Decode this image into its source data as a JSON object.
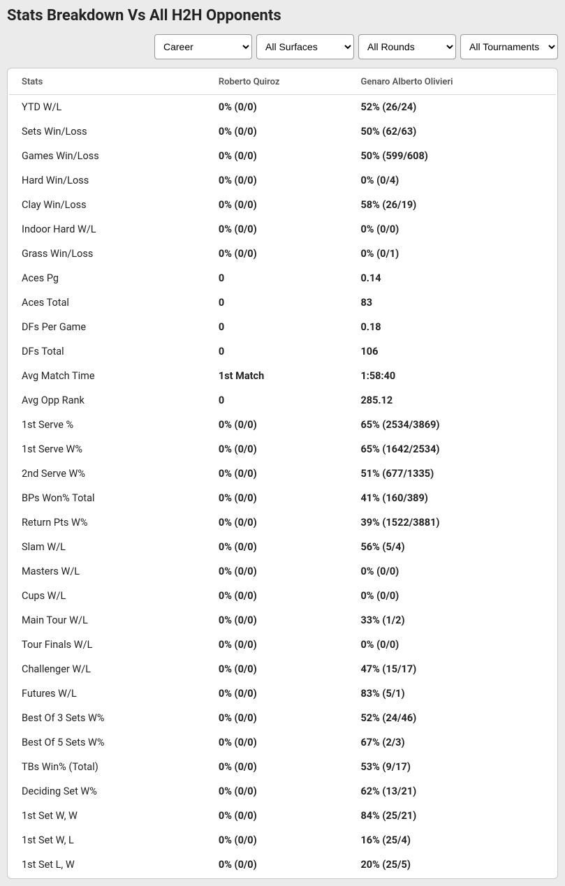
{
  "title": "Stats Breakdown Vs All H2H Opponents",
  "filters": {
    "timeframe": {
      "selected": "Career",
      "options": [
        "Career"
      ]
    },
    "surfaces": {
      "selected": "All Surfaces",
      "options": [
        "All Surfaces"
      ]
    },
    "rounds": {
      "selected": "All Rounds",
      "options": [
        "All Rounds"
      ]
    },
    "tournaments": {
      "selected": "All Tournaments",
      "options": [
        "All Tournaments"
      ]
    }
  },
  "columns": {
    "stats": "Stats",
    "p1": "Roberto Quiroz",
    "p2": "Genaro Alberto Olivieri"
  },
  "rows": [
    {
      "label": "YTD W/L",
      "p1": "0% (0/0)",
      "p2": "52% (26/24)"
    },
    {
      "label": "Sets Win/Loss",
      "p1": "0% (0/0)",
      "p2": "50% (62/63)"
    },
    {
      "label": "Games Win/Loss",
      "p1": "0% (0/0)",
      "p2": "50% (599/608)"
    },
    {
      "label": "Hard Win/Loss",
      "p1": "0% (0/0)",
      "p2": "0% (0/4)"
    },
    {
      "label": "Clay Win/Loss",
      "p1": "0% (0/0)",
      "p2": "58% (26/19)"
    },
    {
      "label": "Indoor Hard W/L",
      "p1": "0% (0/0)",
      "p2": "0% (0/0)"
    },
    {
      "label": "Grass Win/Loss",
      "p1": "0% (0/0)",
      "p2": "0% (0/1)"
    },
    {
      "label": "Aces Pg",
      "p1": "0",
      "p2": "0.14"
    },
    {
      "label": "Aces Total",
      "p1": "0",
      "p2": "83"
    },
    {
      "label": "DFs Per Game",
      "p1": "0",
      "p2": "0.18"
    },
    {
      "label": "DFs Total",
      "p1": "0",
      "p2": "106"
    },
    {
      "label": "Avg Match Time",
      "p1": "1st Match",
      "p2": "1:58:40"
    },
    {
      "label": "Avg Opp Rank",
      "p1": "0",
      "p2": "285.12"
    },
    {
      "label": "1st Serve %",
      "p1": "0% (0/0)",
      "p2": "65% (2534/3869)"
    },
    {
      "label": "1st Serve W%",
      "p1": "0% (0/0)",
      "p2": "65% (1642/2534)"
    },
    {
      "label": "2nd Serve W%",
      "p1": "0% (0/0)",
      "p2": "51% (677/1335)"
    },
    {
      "label": "BPs Won% Total",
      "p1": "0% (0/0)",
      "p2": "41% (160/389)"
    },
    {
      "label": "Return Pts W%",
      "p1": "0% (0/0)",
      "p2": "39% (1522/3881)"
    },
    {
      "label": "Slam W/L",
      "p1": "0% (0/0)",
      "p2": "56% (5/4)"
    },
    {
      "label": "Masters W/L",
      "p1": "0% (0/0)",
      "p2": "0% (0/0)"
    },
    {
      "label": "Cups W/L",
      "p1": "0% (0/0)",
      "p2": "0% (0/0)"
    },
    {
      "label": "Main Tour W/L",
      "p1": "0% (0/0)",
      "p2": "33% (1/2)"
    },
    {
      "label": "Tour Finals W/L",
      "p1": "0% (0/0)",
      "p2": "0% (0/0)"
    },
    {
      "label": "Challenger W/L",
      "p1": "0% (0/0)",
      "p2": "47% (15/17)"
    },
    {
      "label": "Futures W/L",
      "p1": "0% (0/0)",
      "p2": "83% (5/1)"
    },
    {
      "label": "Best Of 3 Sets W%",
      "p1": "0% (0/0)",
      "p2": "52% (24/46)"
    },
    {
      "label": "Best Of 5 Sets W%",
      "p1": "0% (0/0)",
      "p2": "67% (2/3)"
    },
    {
      "label": "TBs Win% (Total)",
      "p1": "0% (0/0)",
      "p2": "53% (9/17)"
    },
    {
      "label": "Deciding Set W%",
      "p1": "0% (0/0)",
      "p2": "62% (13/21)"
    },
    {
      "label": "1st Set W, W",
      "p1": "0% (0/0)",
      "p2": "84% (25/21)"
    },
    {
      "label": "1st Set W, L",
      "p1": "0% (0/0)",
      "p2": "16% (25/4)"
    },
    {
      "label": "1st Set L, W",
      "p1": "0% (0/0)",
      "p2": "20% (25/5)"
    }
  ],
  "colors": {
    "page_bg": "#ebebeb",
    "card_bg": "#ffffff",
    "border": "#c9c9c9",
    "header_border": "#d8d8d8",
    "text": "#222222",
    "header_text": "#555555"
  }
}
